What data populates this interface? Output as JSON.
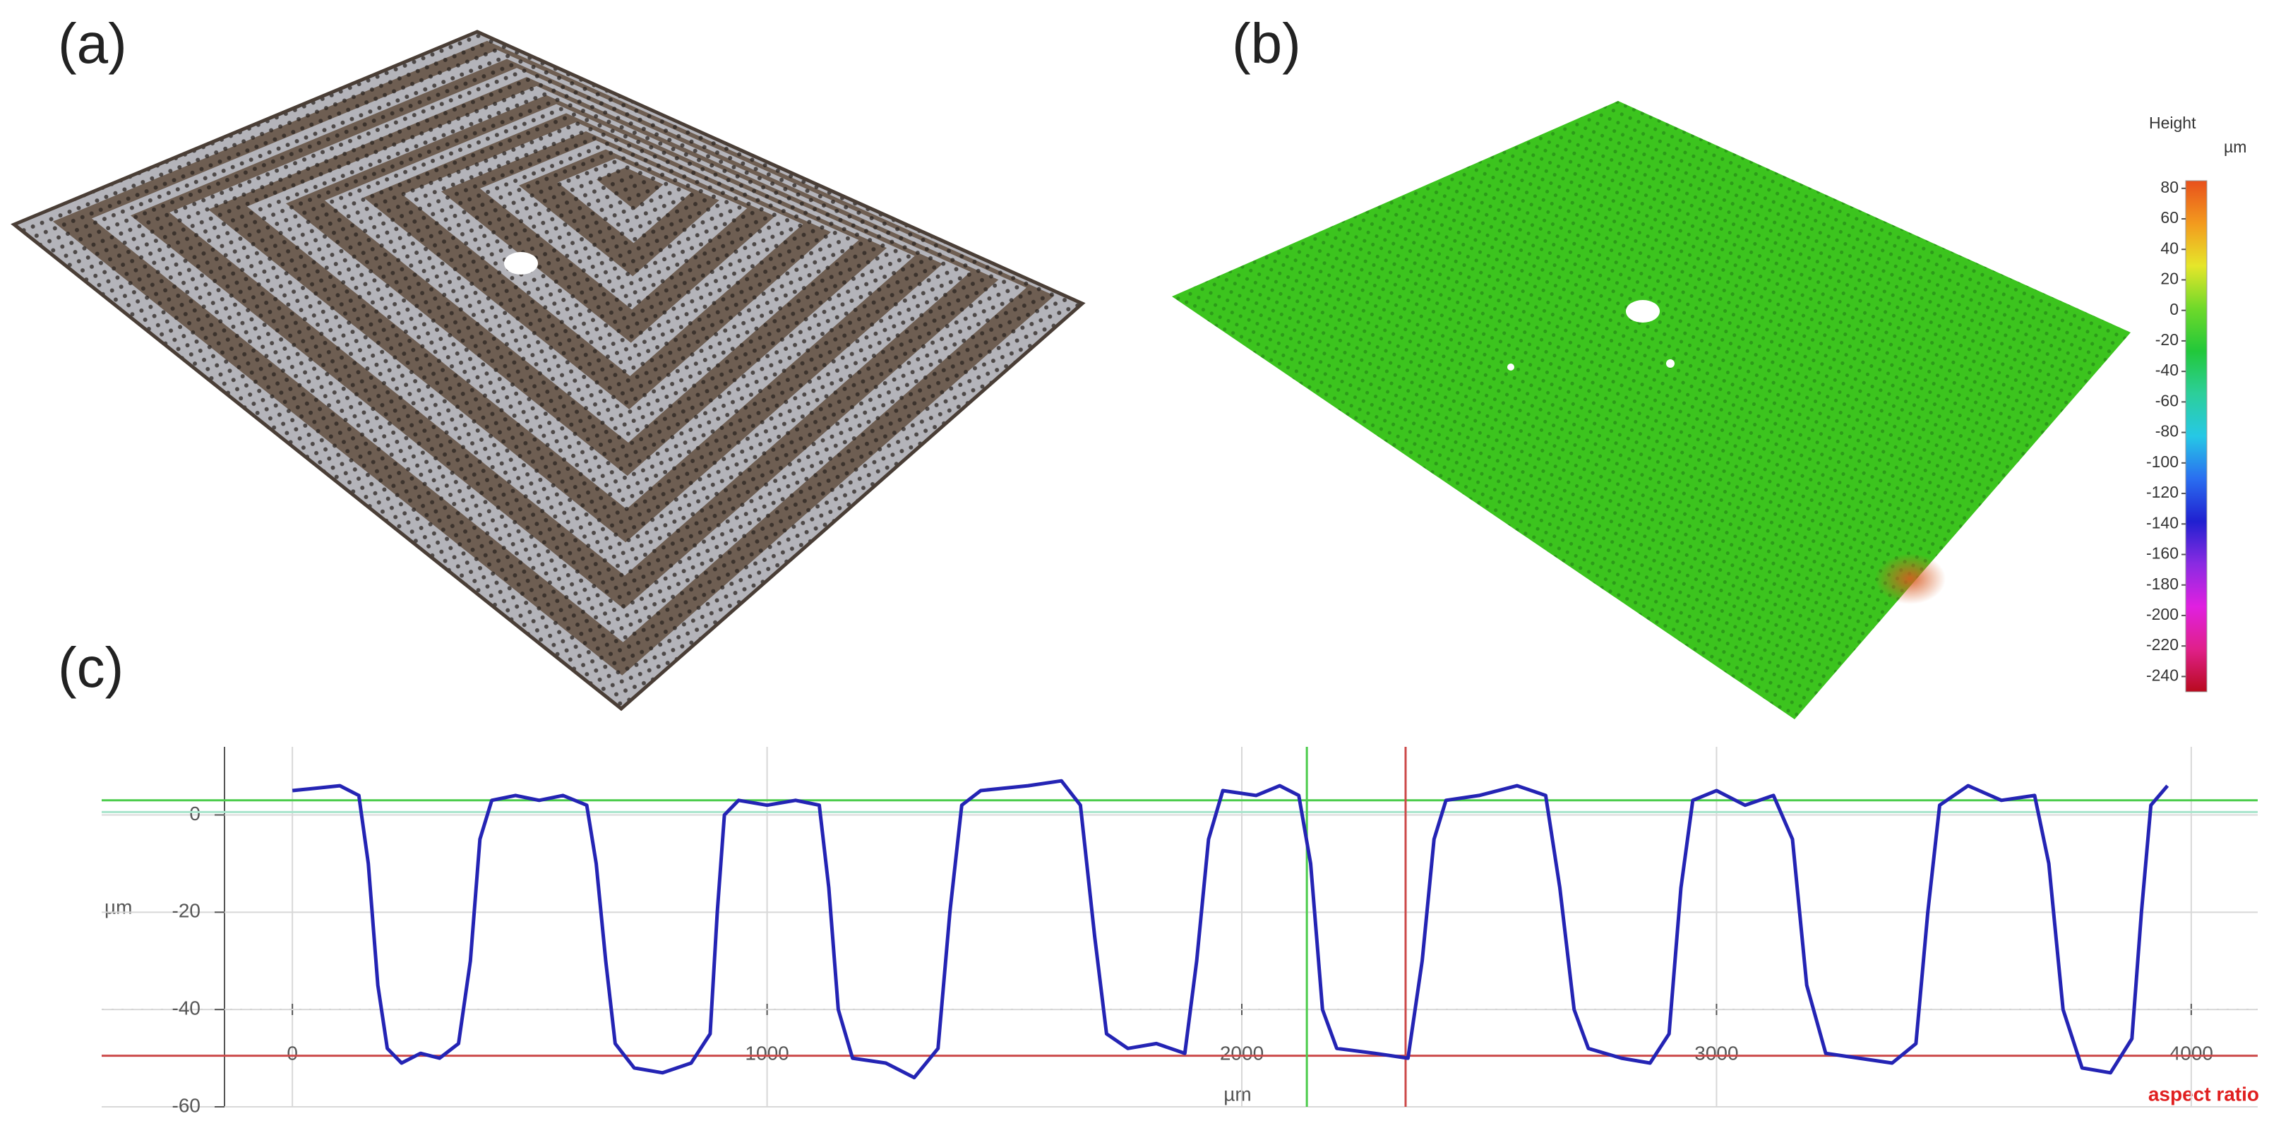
{
  "panels": {
    "a": "(a)",
    "b": "(b)",
    "c": "(c)"
  },
  "colorbar": {
    "title": "Height",
    "unit": "µm",
    "lim": [
      -250,
      85
    ],
    "ticks": [
      80,
      60,
      40,
      20,
      0,
      -20,
      -40,
      -60,
      -80,
      -100,
      -120,
      -140,
      -160,
      -180,
      -200,
      -220,
      -240
    ],
    "colors": [
      "#e8501c",
      "#f39a1e",
      "#e6e62a",
      "#6fd92a",
      "#22c83a",
      "#2ccf9a",
      "#26c8e6",
      "#2a6ef0",
      "#2020d0",
      "#8a2be2",
      "#e020e0",
      "#e0208a",
      "#b80a1e"
    ]
  },
  "chart_data": {
    "type": "line",
    "x": [
      0,
      50,
      100,
      140,
      160,
      180,
      200,
      230,
      270,
      310,
      350,
      375,
      395,
      420,
      470,
      520,
      570,
      620,
      640,
      660,
      680,
      720,
      780,
      840,
      880,
      895,
      910,
      940,
      1000,
      1060,
      1110,
      1130,
      1150,
      1180,
      1250,
      1310,
      1360,
      1385,
      1410,
      1450,
      1550,
      1620,
      1660,
      1690,
      1715,
      1760,
      1820,
      1880,
      1905,
      1930,
      1960,
      2030,
      2080,
      2120,
      2145,
      2170,
      2200,
      2280,
      2350,
      2380,
      2405,
      2430,
      2500,
      2580,
      2640,
      2670,
      2700,
      2730,
      2800,
      2860,
      2900,
      2925,
      2950,
      3000,
      3060,
      3120,
      3160,
      3190,
      3230,
      3300,
      3370,
      3420,
      3445,
      3470,
      3530,
      3600,
      3670,
      3700,
      3730,
      3770,
      3830,
      3875,
      3895,
      3915,
      3950
    ],
    "series": [
      {
        "color": "#2424b4",
        "values": [
          5,
          5.5,
          6,
          4,
          -10,
          -35,
          -48,
          -51,
          -49,
          -50,
          -47,
          -30,
          -5,
          3,
          4,
          3,
          4,
          2,
          -10,
          -30,
          -47,
          -52,
          -53,
          -51,
          -45,
          -20,
          0,
          3,
          2,
          3,
          2,
          -15,
          -40,
          -50,
          -51,
          -54,
          -48,
          -20,
          2,
          5,
          6,
          7,
          2,
          -25,
          -45,
          -48,
          -47,
          -49,
          -30,
          -5,
          5,
          4,
          6,
          4,
          -10,
          -40,
          -48,
          -49,
          -50,
          -30,
          -5,
          3,
          4,
          6,
          4,
          -15,
          -40,
          -48,
          -50,
          -51,
          -45,
          -15,
          3,
          5,
          2,
          4,
          -5,
          -35,
          -49,
          -50,
          -51,
          -47,
          -20,
          2,
          6,
          3,
          4,
          -10,
          -40,
          -52,
          -53,
          -46,
          -20,
          2,
          6
        ]
      }
    ],
    "xlim": [
      -143,
      4140
    ],
    "ylim": [
      -60,
      14
    ],
    "xticks": [
      0,
      1000,
      2000,
      3000,
      4000
    ],
    "yticks": [
      0,
      -20,
      -40,
      -60
    ],
    "xlabel": "µm",
    "ylabel": "µm",
    "annotation": "aspect ratio",
    "grid": true,
    "cursors": [
      {
        "axis": "y",
        "value": 3,
        "color": "#4ccc4c"
      },
      {
        "axis": "y",
        "value": 0.6,
        "color": "#a8e4cc"
      },
      {
        "axis": "y",
        "value": -49.5,
        "color": "#cc4a4a"
      },
      {
        "axis": "x",
        "value": 2137,
        "color": "#4ccc4c"
      },
      {
        "axis": "x",
        "value": 2345,
        "color": "#cc4a4a"
      }
    ]
  }
}
